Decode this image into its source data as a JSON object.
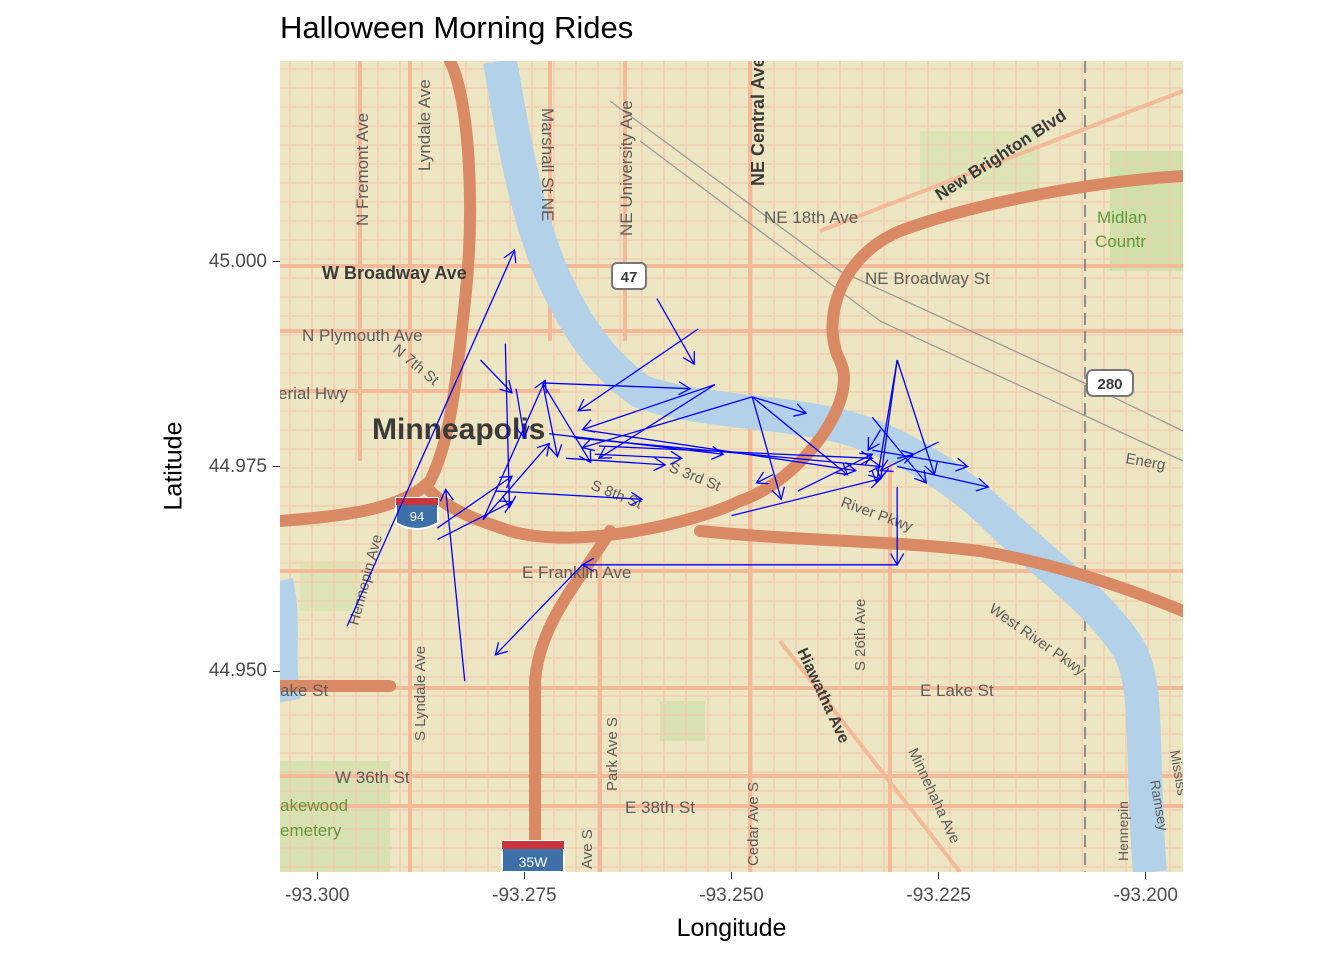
{
  "title": "Halloween Morning Rides",
  "x_axis": {
    "title": "Longitude",
    "ticks": [
      "-93.300",
      "-93.275",
      "-93.250",
      "-93.225",
      "-93.200"
    ]
  },
  "y_axis": {
    "title": "Latitude",
    "ticks": [
      "45.000",
      "44.975",
      "44.950"
    ]
  },
  "map": {
    "place_labels": [
      "Minneapolis",
      "N Fremont Ave",
      "Lyndale Ave",
      "Marshall St NE",
      "NE University Ave",
      "NE Central Ave",
      "New Brighton Blvd",
      "NE 18th Ave",
      "Midlan",
      "Countr",
      "W Broadway Ave",
      "NE Broadway St",
      "N Plymouth Ave",
      "N 7th St",
      "erial Hwy",
      "S 3rd St",
      "S 8th St",
      "River Pkwy",
      "West River Pkwy",
      "Energ",
      "E Franklin Ave",
      "Hennepin Ave",
      "S Lyndale Ave",
      "S 26th Ave",
      "Hiawatha Ave",
      "E Lake St",
      "ake St",
      "W 36th St",
      "Park Ave S",
      "E 38th St",
      "Cedar Ave S",
      "Minnehaha Ave",
      "akewood",
      "emetery",
      "Ave S",
      "Hennepin",
      "Ramsey",
      "Mississ"
    ],
    "shields": [
      "47",
      "280",
      "94",
      "35W"
    ],
    "colors": {
      "land": "#ece6c2",
      "street": "#f4c4a4",
      "highway": "#d98a64",
      "water": "#b3d1e8",
      "park": "#cfe0a8",
      "rail": "#9a9a9a"
    }
  },
  "chart_data": {
    "type": "map-arrows",
    "title": "Halloween Morning Rides",
    "xlabel": "Longitude",
    "ylabel": "Latitude",
    "xlim": [
      -93.3045,
      -93.1955
    ],
    "ylim": [
      44.9255,
      45.0245
    ],
    "arrow_color": "#0000ff",
    "segments": [
      {
        "x": -93.2964,
        "y": 44.9555,
        "xend": -93.2762,
        "yend": 45.0014
      },
      {
        "x": -93.2822,
        "y": 44.9488,
        "xend": -93.2845,
        "yend": 44.9722
      },
      {
        "x": -93.2855,
        "y": 44.9661,
        "xend": -93.2765,
        "yend": 44.9707
      },
      {
        "x": -93.2855,
        "y": 44.9675,
        "xend": -93.2765,
        "yend": 44.9738
      },
      {
        "x": -93.2785,
        "y": 44.972,
        "xend": -93.2608,
        "yend": 44.971
      },
      {
        "x": -93.28,
        "y": 44.9685,
        "xend": -93.2725,
        "yend": 44.9855
      },
      {
        "x": -93.28,
        "y": 44.9685,
        "xend": -93.272,
        "yend": 44.9778
      },
      {
        "x": -93.2773,
        "y": 44.99,
        "xend": -93.2768,
        "yend": 44.97
      },
      {
        "x": -93.2803,
        "y": 44.988,
        "xend": -93.2765,
        "yend": 44.984
      },
      {
        "x": -93.276,
        "y": 44.9845,
        "xend": -93.275,
        "yend": 44.9785
      },
      {
        "x": -93.2728,
        "y": 44.9852,
        "xend": -93.271,
        "yend": 44.9762
      },
      {
        "x": -93.2728,
        "y": 44.9852,
        "xend": -93.267,
        "yend": 44.9755
      },
      {
        "x": -93.2728,
        "y": 44.9852,
        "xend": -93.255,
        "yend": 44.9845
      },
      {
        "x": -93.259,
        "y": 44.9955,
        "xend": -93.2545,
        "yend": 44.9875
      },
      {
        "x": -93.254,
        "y": 44.9918,
        "xend": -93.2685,
        "yend": 44.9818
      },
      {
        "x": -93.252,
        "y": 44.985,
        "xend": -93.268,
        "yend": 44.9795
      },
      {
        "x": -93.252,
        "y": 44.985,
        "xend": -93.266,
        "yend": 44.976
      },
      {
        "x": -93.2475,
        "y": 44.9835,
        "xend": -93.268,
        "yend": 44.9773
      },
      {
        "x": -93.272,
        "y": 44.979,
        "xend": -93.251,
        "yend": 44.9765
      },
      {
        "x": -93.27,
        "y": 44.976,
        "xend": -93.258,
        "yend": 44.9752
      },
      {
        "x": -93.2665,
        "y": 44.9765,
        "xend": -93.256,
        "yend": 44.976
      },
      {
        "x": -93.269,
        "y": 44.9785,
        "xend": -93.232,
        "yend": 44.975
      },
      {
        "x": -93.268,
        "y": 44.9795,
        "xend": -93.235,
        "yend": 44.9745
      },
      {
        "x": -93.266,
        "y": 44.9775,
        "xend": -93.233,
        "yend": 44.976
      },
      {
        "x": -93.2475,
        "y": 44.9835,
        "xend": -93.241,
        "yend": 44.9815
      },
      {
        "x": -93.2475,
        "y": 44.9835,
        "xend": -93.236,
        "yend": 44.974
      },
      {
        "x": -93.2475,
        "y": 44.9835,
        "xend": -93.244,
        "yend": 44.971
      },
      {
        "x": -93.25,
        "y": 44.969,
        "xend": -93.232,
        "yend": 44.9735
      },
      {
        "x": -93.242,
        "y": 44.972,
        "xend": -93.233,
        "yend": 44.9765
      },
      {
        "x": -93.23,
        "y": 44.988,
        "xend": -93.232,
        "yend": 44.9735
      },
      {
        "x": -93.23,
        "y": 44.988,
        "xend": -93.2325,
        "yend": 44.973
      },
      {
        "x": -93.23,
        "y": 44.988,
        "xend": -93.2255,
        "yend": 44.974
      },
      {
        "x": -93.225,
        "y": 44.978,
        "xend": -93.232,
        "yend": 44.9745
      },
      {
        "x": -93.23,
        "y": 44.975,
        "xend": -93.219,
        "yend": 44.9725
      },
      {
        "x": -93.233,
        "y": 44.981,
        "xend": -93.2265,
        "yend": 44.973
      },
      {
        "x": -93.233,
        "y": 44.977,
        "xend": -93.2215,
        "yend": 44.975
      },
      {
        "x": -93.23,
        "y": 44.976,
        "xend": -93.228,
        "yend": 44.9765
      },
      {
        "x": -93.232,
        "y": 44.9795,
        "xend": -93.2335,
        "yend": 44.977
      },
      {
        "x": -93.23,
        "y": 44.9725,
        "xend": -93.23,
        "yend": 44.963
      },
      {
        "x": -93.23,
        "y": 44.963,
        "xend": -93.268,
        "yend": 44.963
      },
      {
        "x": -93.268,
        "y": 44.963,
        "xend": -93.2785,
        "yend": 44.952
      },
      {
        "x": -93.245,
        "y": 44.974,
        "xend": -93.247,
        "yend": 44.973
      }
    ]
  }
}
